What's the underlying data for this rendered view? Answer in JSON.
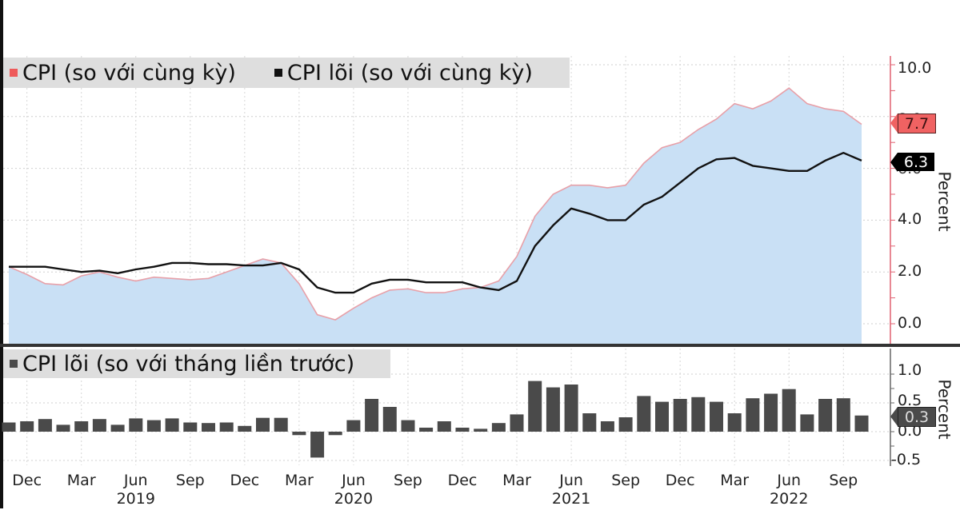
{
  "legend": {
    "top": [
      {
        "label": "CPI (so với cùng kỳ)",
        "color": "#ee5a5a"
      },
      {
        "label": "CPI lõi (so với cùng kỳ)",
        "color": "#111111"
      }
    ],
    "bottom": [
      {
        "label": "CPI lõi (so với tháng liền trước)",
        "color": "#4a4a4a"
      }
    ]
  },
  "axis": {
    "top_ticks": [
      "10.0",
      "8.0",
      "6.0",
      "4.0",
      "2.0",
      "0.0"
    ],
    "bottom_ticks": [
      "1.0",
      "0.5",
      "0.0",
      "-0.5"
    ],
    "ylabel": "Percent"
  },
  "end_labels": {
    "cpi": "7.7",
    "core": "6.3",
    "core_mom": "0.3"
  },
  "x_ticks": [
    {
      "label": "Dec",
      "year": ""
    },
    {
      "label": "Mar",
      "year": ""
    },
    {
      "label": "Jun",
      "year": "2019"
    },
    {
      "label": "Sep",
      "year": ""
    },
    {
      "label": "Dec",
      "year": ""
    },
    {
      "label": "Mar",
      "year": ""
    },
    {
      "label": "Jun",
      "year": "2020"
    },
    {
      "label": "Sep",
      "year": ""
    },
    {
      "label": "Dec",
      "year": ""
    },
    {
      "label": "Mar",
      "year": ""
    },
    {
      "label": "Jun",
      "year": "2021"
    },
    {
      "label": "Sep",
      "year": ""
    },
    {
      "label": "Dec",
      "year": ""
    },
    {
      "label": "Mar",
      "year": ""
    },
    {
      "label": "Jun",
      "year": "2022"
    },
    {
      "label": "Sep",
      "year": ""
    }
  ],
  "colors": {
    "area_fill": "#c9e0f5",
    "cpi_line": "#e8a0a8",
    "core_line": "#111111",
    "bar": "#4a4a4a",
    "axis_red": "#e06070",
    "tag_cpi": "#f06262",
    "tag_core": "#000000",
    "tag_mom": "#4a4a4a"
  },
  "chart_data": [
    {
      "type": "area",
      "title": "",
      "xlabel": "",
      "ylabel": "Percent",
      "ylim": [
        -0.4,
        10.4
      ],
      "grid": true,
      "legend_position": "top-left",
      "x": [
        "Nov 2018",
        "Dec 2018",
        "Jan 2019",
        "Feb 2019",
        "Mar 2019",
        "Apr 2019",
        "May 2019",
        "Jun 2019",
        "Jul 2019",
        "Aug 2019",
        "Sep 2019",
        "Oct 2019",
        "Nov 2019",
        "Dec 2019",
        "Jan 2020",
        "Feb 2020",
        "Mar 2020",
        "Apr 2020",
        "May 2020",
        "Jun 2020",
        "Jul 2020",
        "Aug 2020",
        "Sep 2020",
        "Oct 2020",
        "Nov 2020",
        "Dec 2020",
        "Jan 2021",
        "Feb 2021",
        "Mar 2021",
        "Apr 2021",
        "May 2021",
        "Jun 2021",
        "Jul 2021",
        "Aug 2021",
        "Sep 2021",
        "Oct 2021",
        "Nov 2021",
        "Dec 2021",
        "Jan 2022",
        "Feb 2022",
        "Mar 2022",
        "Apr 2022",
        "May 2022",
        "Jun 2022",
        "Jul 2022",
        "Aug 2022",
        "Sep 2022",
        "Oct 2022"
      ],
      "series": [
        {
          "name": "CPI (so với cùng kỳ)",
          "style": "area",
          "values": [
            2.2,
            1.9,
            1.55,
            1.5,
            1.85,
            2.0,
            1.8,
            1.65,
            1.8,
            1.75,
            1.7,
            1.75,
            2.0,
            2.25,
            2.5,
            2.35,
            1.55,
            0.35,
            0.15,
            0.6,
            1.0,
            1.3,
            1.35,
            1.2,
            1.2,
            1.35,
            1.4,
            1.65,
            2.6,
            4.15,
            5.0,
            5.35,
            5.35,
            5.25,
            5.35,
            6.2,
            6.8,
            7.0,
            7.5,
            7.9,
            8.5,
            8.3,
            8.6,
            9.1,
            8.5,
            8.3,
            8.2,
            7.7
          ]
        },
        {
          "name": "CPI lõi (so với cùng kỳ)",
          "style": "line",
          "values": [
            2.2,
            2.2,
            2.2,
            2.1,
            2.0,
            2.05,
            1.95,
            2.1,
            2.2,
            2.35,
            2.35,
            2.3,
            2.3,
            2.25,
            2.25,
            2.35,
            2.1,
            1.4,
            1.2,
            1.2,
            1.55,
            1.7,
            1.7,
            1.6,
            1.6,
            1.6,
            1.4,
            1.3,
            1.65,
            3.0,
            3.8,
            4.45,
            4.25,
            4.0,
            4.0,
            4.6,
            4.9,
            5.45,
            6.0,
            6.35,
            6.4,
            6.1,
            6.0,
            5.9,
            5.9,
            6.3,
            6.6,
            6.3
          ]
        }
      ],
      "yticks": [
        0,
        2,
        4,
        6,
        8,
        10
      ],
      "end_labels": {
        "CPI": 7.7,
        "CPI lõi": 6.3
      }
    },
    {
      "type": "bar",
      "title": "",
      "xlabel": "",
      "ylabel": "Percent",
      "ylim": [
        -0.6,
        1.1
      ],
      "grid": true,
      "legend_position": "top-left",
      "x": [
        "Nov 2018",
        "Dec 2018",
        "Jan 2019",
        "Feb 2019",
        "Mar 2019",
        "Apr 2019",
        "May 2019",
        "Jun 2019",
        "Jul 2019",
        "Aug 2019",
        "Sep 2019",
        "Oct 2019",
        "Nov 2019",
        "Dec 2019",
        "Jan 2020",
        "Feb 2020",
        "Mar 2020",
        "Apr 2020",
        "May 2020",
        "Jun 2020",
        "Jul 2020",
        "Aug 2020",
        "Sep 2020",
        "Oct 2020",
        "Nov 2020",
        "Dec 2020",
        "Jan 2021",
        "Feb 2021",
        "Mar 2021",
        "Apr 2021",
        "May 2021",
        "Jun 2021",
        "Jul 2021",
        "Aug 2021",
        "Sep 2021",
        "Oct 2021",
        "Nov 2021",
        "Dec 2021",
        "Jan 2022",
        "Feb 2022",
        "Mar 2022",
        "Apr 2022",
        "May 2022",
        "Jun 2022",
        "Jul 2022",
        "Aug 2022",
        "Sep 2022",
        "Oct 2022"
      ],
      "series": [
        {
          "name": "CPI lõi (so với tháng liền trước)",
          "values": [
            0.16,
            0.18,
            0.22,
            0.12,
            0.18,
            0.22,
            0.12,
            0.23,
            0.2,
            0.23,
            0.16,
            0.15,
            0.16,
            0.1,
            0.24,
            0.24,
            -0.06,
            -0.45,
            -0.06,
            0.2,
            0.57,
            0.43,
            0.2,
            0.07,
            0.18,
            0.07,
            0.05,
            0.15,
            0.3,
            0.88,
            0.77,
            0.82,
            0.32,
            0.18,
            0.25,
            0.62,
            0.52,
            0.57,
            0.6,
            0.52,
            0.32,
            0.58,
            0.66,
            0.74,
            0.3,
            0.57,
            0.58,
            0.28
          ]
        }
      ],
      "yticks": [
        -0.5,
        0,
        0.5,
        1.0
      ],
      "end_labels": {
        "CPI lõi MoM": 0.3
      }
    }
  ]
}
